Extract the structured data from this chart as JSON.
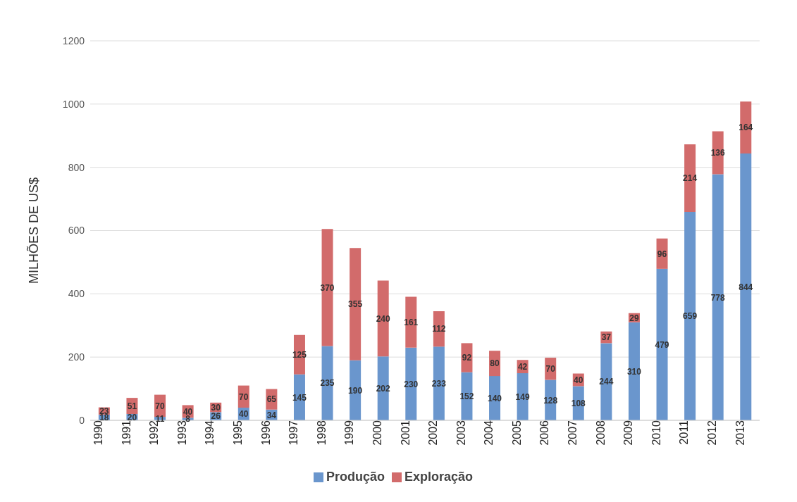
{
  "chart_data": {
    "type": "bar",
    "stacked": true,
    "ylabel": "MILHÕES DE US$",
    "categories": [
      "1990",
      "1991",
      "1992",
      "1993",
      "1994",
      "1995",
      "1996",
      "1997",
      "1998",
      "1999",
      "2000",
      "2001",
      "2002",
      "2003",
      "2004",
      "2005",
      "2006",
      "2007",
      "2008",
      "2009",
      "2010",
      "2011",
      "2012",
      "2013"
    ],
    "series": [
      {
        "name": "Produção",
        "color": "#6a96cd",
        "values": [
          18,
          20,
          11,
          8,
          26,
          40,
          34,
          145,
          235,
          190,
          202,
          230,
          233,
          152,
          140,
          149,
          128,
          108,
          244,
          310,
          479,
          659,
          778,
          844
        ]
      },
      {
        "name": "Exploração",
        "color": "#d26b6b",
        "values": [
          23,
          51,
          70,
          40,
          30,
          70,
          65,
          125,
          370,
          355,
          240,
          161,
          112,
          92,
          80,
          42,
          70,
          40,
          37,
          29,
          96,
          214,
          136,
          164
        ]
      }
    ],
    "ylim": [
      0,
      1200
    ],
    "yticks": [
      0,
      200,
      400,
      600,
      800,
      1000,
      1200
    ],
    "grid": "y",
    "legend": "bottom",
    "data_labels": true
  }
}
